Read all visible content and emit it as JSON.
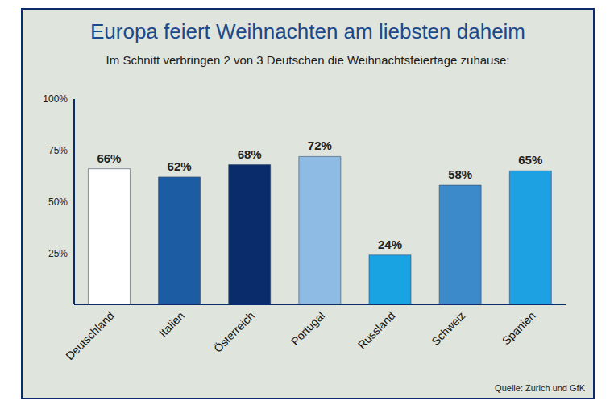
{
  "chart_data": {
    "type": "bar",
    "title": "Europa feiert Weihnachten am liebsten daheim",
    "subtitle": "Im Schnitt verbringen 2 von 3 Deutschen die Weihnachtsfeiertage zuhause:",
    "categories": [
      "Deutschland",
      "Italien",
      "Österreich",
      "Portugal",
      "Russland",
      "Schweiz",
      "Spanien"
    ],
    "values": [
      66,
      62,
      68,
      72,
      24,
      58,
      65
    ],
    "value_labels": [
      "66%",
      "62%",
      "68%",
      "72%",
      "24%",
      "58%",
      "65%"
    ],
    "colors": [
      "#ffffff",
      "#1b5ca3",
      "#0b2c6b",
      "#8dbbe3",
      "#1aa3e3",
      "#3d8acb",
      "#1da1e2"
    ],
    "ylim": [
      0,
      100
    ],
    "yticks": [
      {
        "value": 25,
        "label": "25%"
      },
      {
        "value": 50,
        "label": "50%"
      },
      {
        "value": 75,
        "label": "75%"
      },
      {
        "value": 100,
        "label": "100%"
      }
    ],
    "grid": false,
    "data_labels": true,
    "annotation": "Quelle: Zurich und GfK"
  }
}
